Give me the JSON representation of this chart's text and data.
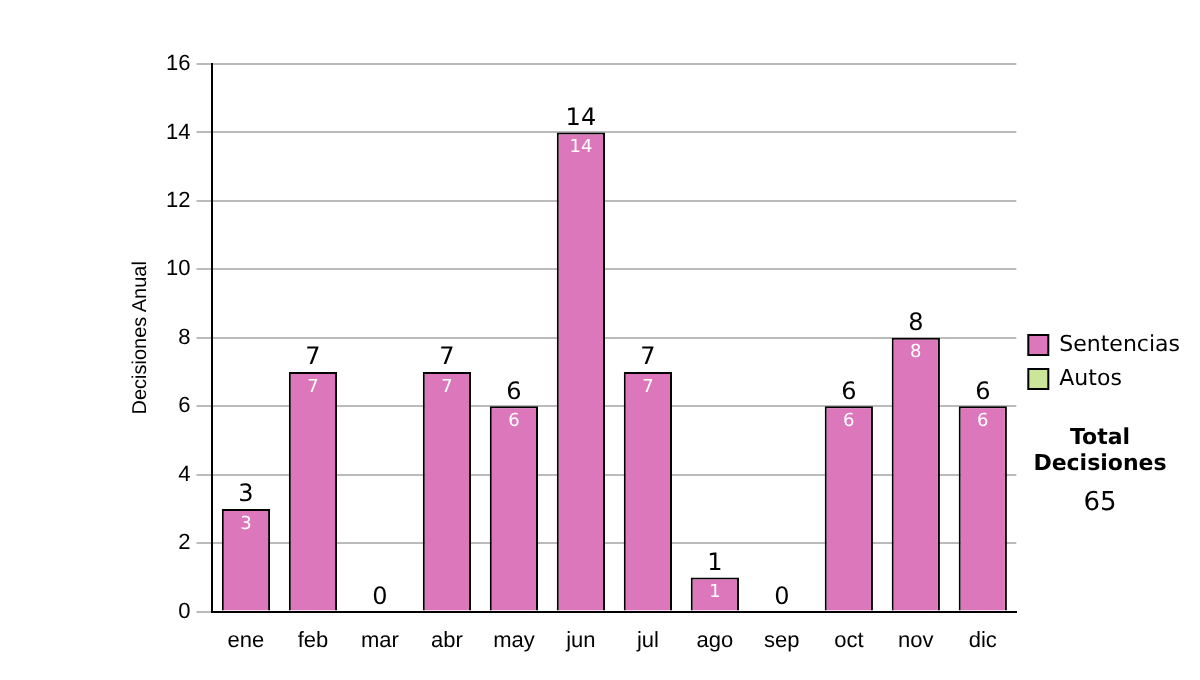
{
  "chart_data": {
    "type": "bar",
    "stacked": true,
    "ylabel": "Decisiones Anual",
    "categories": [
      "ene",
      "feb",
      "mar",
      "abr",
      "may",
      "jun",
      "jul",
      "ago",
      "sep",
      "oct",
      "nov",
      "dic"
    ],
    "series": [
      {
        "name": "Sentencias",
        "color": "#dd77bb",
        "values": [
          3,
          7,
          0,
          7,
          6,
          14,
          7,
          1,
          0,
          6,
          8,
          6
        ],
        "value_labels": [
          "3",
          "7",
          null,
          "7",
          "6",
          "14",
          "7",
          "1",
          null,
          "6",
          "8",
          "6"
        ]
      },
      {
        "name": "Autos",
        "color": "#cce699",
        "values": [
          0,
          0,
          0,
          0,
          0,
          0,
          0,
          0,
          0,
          0,
          0,
          0
        ]
      }
    ],
    "totals": [
      "3",
      "7",
      "0",
      "7",
      "6",
      "14",
      "7",
      "1",
      "0",
      "6",
      "8",
      "6"
    ],
    "ylim": [
      0,
      16
    ],
    "yticks": [
      0,
      2,
      4,
      6,
      8,
      10,
      12,
      14,
      16
    ],
    "grid": "y",
    "legend": "right",
    "annotations": [
      "Total Decisiones",
      "65"
    ]
  }
}
